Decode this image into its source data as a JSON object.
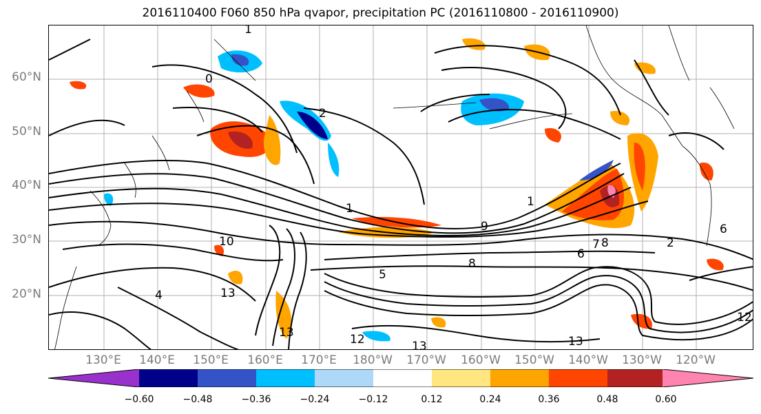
{
  "title": "2016110400 F060 850 hPa qvapor, precipitation PC (2016110800 - 2016110900)",
  "lat_labels": [
    "60°N",
    "50°N",
    "40°N",
    "30°N",
    "20°N"
  ],
  "lon_labels": [
    "130°E",
    "140°E",
    "150°E",
    "160°E",
    "170°E",
    "180°W",
    "170°W",
    "160°W",
    "150°W",
    "140°W",
    "130°W",
    "120°W"
  ],
  "colorbar": {
    "ticks": [
      "−0.60",
      "−0.48",
      "−0.36",
      "−0.24",
      "−0.12",
      "0.12",
      "0.24",
      "0.36",
      "0.48",
      "0.60"
    ],
    "colors": [
      "#9932cc",
      "#00008b",
      "#3353c7",
      "#00bfff",
      "#add8f7",
      "#ffffff",
      "#ffe680",
      "#ffa500",
      "#ff4500",
      "#b22222",
      "#ff85b0"
    ]
  },
  "contour_labels": [
    "1",
    "0",
    "2",
    "1",
    "10",
    "13",
    "13",
    "13",
    "12",
    "8",
    "6",
    "7",
    "8",
    "9",
    "12",
    "13",
    "4",
    "1",
    "2",
    "5",
    "6"
  ]
}
